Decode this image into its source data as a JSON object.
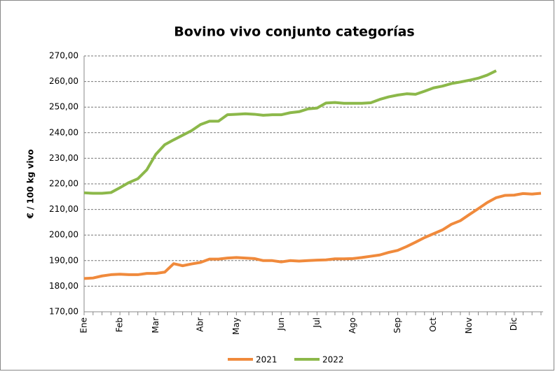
{
  "chart_data": {
    "type": "line",
    "title": "Bovino vivo conjunto categorías",
    "y_label": "€ / 100 kg vivo",
    "categories": [
      "Ene",
      null,
      null,
      null,
      "Feb",
      null,
      null,
      null,
      "Mar",
      null,
      null,
      null,
      null,
      "Abr",
      null,
      null,
      null,
      "May",
      null,
      null,
      null,
      null,
      "Jun",
      null,
      null,
      null,
      "Jul",
      null,
      null,
      null,
      "Ago",
      null,
      null,
      null,
      null,
      "Sep",
      null,
      null,
      null,
      "Oct",
      null,
      null,
      null,
      "Nov",
      null,
      null,
      null,
      null,
      "Dic",
      null,
      null,
      null
    ],
    "series": [
      {
        "name": "2021",
        "color": "#f08a3c",
        "values": [
          183,
          183.2,
          184,
          184.5,
          184.7,
          184.5,
          184.5,
          185,
          185,
          185.5,
          188.8,
          188,
          188.7,
          189.3,
          190.6,
          190.6,
          191,
          191.2,
          191,
          190.8,
          190,
          190,
          189.5,
          190,
          189.8,
          190,
          190.2,
          190.3,
          190.7,
          190.7,
          190.8,
          191.2,
          191.7,
          192.2,
          193.2,
          194,
          195.5,
          197.2,
          199,
          200.5,
          202,
          204.2,
          205.6,
          208,
          210.3,
          212.7,
          214.6,
          215.5,
          215.6,
          216.2,
          216,
          216.3
        ]
      },
      {
        "name": "2022",
        "color": "#8cb84a",
        "values": [
          216.5,
          216.3,
          216.3,
          216.6,
          218.5,
          220.5,
          222,
          225.5,
          231.5,
          235.3,
          237.2,
          239,
          240.8,
          243.2,
          244.5,
          244.5,
          247,
          247.2,
          247.4,
          247.2,
          246.8,
          247,
          247,
          247.8,
          248.2,
          249.3,
          249.6,
          251.6,
          251.8,
          251.5,
          251.5,
          251.5,
          251.7,
          253,
          254,
          254.7,
          255.2,
          255,
          256.2,
          257.5,
          258.2,
          259.2,
          259.8,
          260.5,
          261.3,
          262.5,
          264.2,
          null,
          null,
          null,
          null,
          null
        ]
      }
    ],
    "ylim": [
      170,
      270
    ],
    "yticks": [
      {
        "value": 170,
        "label": "170,00"
      },
      {
        "value": 180,
        "label": "180,00"
      },
      {
        "value": 190,
        "label": "190,00"
      },
      {
        "value": 200,
        "label": "200,00"
      },
      {
        "value": 210,
        "label": "210,00"
      },
      {
        "value": 220,
        "label": "220,00"
      },
      {
        "value": 230,
        "label": "230,00"
      },
      {
        "value": 240,
        "label": "240,00"
      },
      {
        "value": 250,
        "label": "250,00"
      },
      {
        "value": 260,
        "label": "260,00"
      },
      {
        "value": 270,
        "label": "270,00"
      }
    ],
    "grid": true,
    "legend": "bottom"
  }
}
